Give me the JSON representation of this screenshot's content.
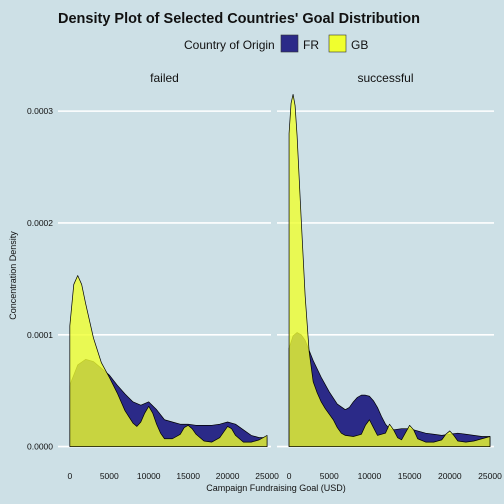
{
  "chart_data": {
    "type": "area",
    "title": "Density Plot of Selected Countries' Goal Distribution",
    "xlabel": "Campaign Fundraising Goal (USD)",
    "ylabel": "Concentration Density",
    "legend": {
      "title": "Country of Origin",
      "placement": "top",
      "entries": [
        {
          "name": "FR",
          "color": "#2b2a88"
        },
        {
          "name": "GB",
          "color": "#f0ff2e"
        }
      ]
    },
    "xlim": [
      -1500,
      25500
    ],
    "ylim": [
      -1.2e-05,
      0.000318
    ],
    "x_ticks": [
      0,
      5000,
      10000,
      15000,
      20000,
      25000
    ],
    "x_tick_labels": [
      "0",
      "5000",
      "10000",
      "15000",
      "20000",
      "25000"
    ],
    "y_ticks": [
      0.0,
      0.0001,
      0.0002,
      0.0003
    ],
    "y_tick_labels": [
      "0.0000",
      "0.0001",
      "0.0002",
      "0.0003"
    ],
    "grid": true,
    "panels": [
      {
        "label": "failed",
        "series": [
          {
            "name": "FR",
            "color": "#2b2a88",
            "x": [
              0,
              1000,
              2000,
              3000,
              4000,
              5000,
              6000,
              7000,
              8000,
              9000,
              10000,
              11000,
              12000,
              13000,
              14000,
              15000,
              16000,
              17000,
              18000,
              19000,
              20000,
              21000,
              22000,
              23000,
              24000,
              25000
            ],
            "y": [
              5.5e-05,
              7.3e-05,
              7.8e-05,
              7.6e-05,
              7e-05,
              6.4e-05,
              5.5e-05,
              4.7e-05,
              4e-05,
              3.7e-05,
              4e-05,
              3.3e-05,
              2.4e-05,
              2.2e-05,
              2e-05,
              2e-05,
              1.9e-05,
              1.9e-05,
              1.9e-05,
              2e-05,
              2.2e-05,
              2e-05,
              1.5e-05,
              1e-05,
              8e-06,
              8e-06
            ]
          },
          {
            "name": "GB",
            "color": "#f0ff2e",
            "x": [
              0,
              500,
              1000,
              1500,
              2000,
              3000,
              4000,
              5000,
              6000,
              7000,
              8000,
              8500,
              9000,
              9500,
              10000,
              10500,
              11000,
              11500,
              12000,
              13000,
              14000,
              14500,
              15000,
              15500,
              16000,
              17000,
              18000,
              19000,
              19500,
              20000,
              20500,
              21000,
              22000,
              23000,
              24000,
              25000
            ],
            "y": [
              0.000108,
              0.000145,
              0.000153,
              0.000145,
              0.000128,
              9.7e-05,
              7.5e-05,
              6.2e-05,
              4.8e-05,
              3.2e-05,
              2.1e-05,
              1.8e-05,
              2.2e-05,
              3e-05,
              3.6e-05,
              3e-05,
              2e-05,
              1.2e-05,
              7e-06,
              7e-06,
              1.1e-05,
              1.7e-05,
              1.9e-05,
              1.6e-05,
              1.1e-05,
              5e-06,
              4e-06,
              8e-06,
              1.3e-05,
              1.8e-05,
              1.6e-05,
              1e-05,
              4e-06,
              4e-06,
              6e-06,
              1e-05
            ]
          }
        ]
      },
      {
        "label": "successful",
        "series": [
          {
            "name": "FR",
            "color": "#2b2a88",
            "x": [
              0,
              500,
              1000,
              1500,
              2000,
              3000,
              4000,
              5000,
              6000,
              7000,
              7500,
              8000,
              8500,
              9000,
              9500,
              10000,
              10500,
              11000,
              11500,
              12000,
              12500,
              13000,
              14000,
              15000,
              16000,
              17000,
              18000,
              19000,
              20000,
              21000,
              22000,
              23000,
              24000,
              25000
            ],
            "y": [
              8.8e-05,
              9.9e-05,
              0.000102,
              0.0001,
              9.5e-05,
              7.7e-05,
              6.2e-05,
              4.9e-05,
              3.8e-05,
              3.3e-05,
              3.5e-05,
              4e-05,
              4.4e-05,
              4.6e-05,
              4.6e-05,
              4.5e-05,
              4.1e-05,
              3.5e-05,
              2.7e-05,
              2e-05,
              1.6e-05,
              1.5e-05,
              1.6e-05,
              1.6e-05,
              1.4e-05,
              1.2e-05,
              1.1e-05,
              1e-05,
              1.1e-05,
              1.2e-05,
              1.1e-05,
              1e-05,
              9e-06,
              9e-06
            ]
          },
          {
            "name": "GB",
            "color": "#f0ff2e",
            "x": [
              0,
              250,
              500,
              750,
              1000,
              1500,
              2000,
              2500,
              3000,
              3500,
              4000,
              4500,
              5000,
              5500,
              6000,
              6500,
              7000,
              8000,
              9000,
              9500,
              10000,
              10500,
              11000,
              12000,
              12500,
              13000,
              13500,
              14000,
              15000,
              15500,
              16000,
              17000,
              18000,
              19000,
              19500,
              20000,
              20500,
              21000,
              22000,
              23000,
              24000,
              25000
            ],
            "y": [
              0.00028,
              0.000307,
              0.000315,
              0.000305,
              0.000278,
              0.000205,
              0.000135,
              8.5e-05,
              5.8e-05,
              4.8e-05,
              4e-05,
              3.4e-05,
              2.9e-05,
              2.4e-05,
              1.7e-05,
              1.2e-05,
              1e-05,
              9e-06,
              1.1e-05,
              1.9e-05,
              2.4e-05,
              1.7e-05,
              1e-05,
              1.2e-05,
              2e-05,
              1.5e-05,
              8e-06,
              6e-06,
              1.9e-05,
              1.5e-05,
              7e-06,
              4e-06,
              4e-06,
              6e-06,
              1.1e-05,
              1.4e-05,
              1e-05,
              5e-06,
              4e-06,
              5e-06,
              7e-06,
              9e-06
            ]
          }
        ]
      }
    ]
  }
}
